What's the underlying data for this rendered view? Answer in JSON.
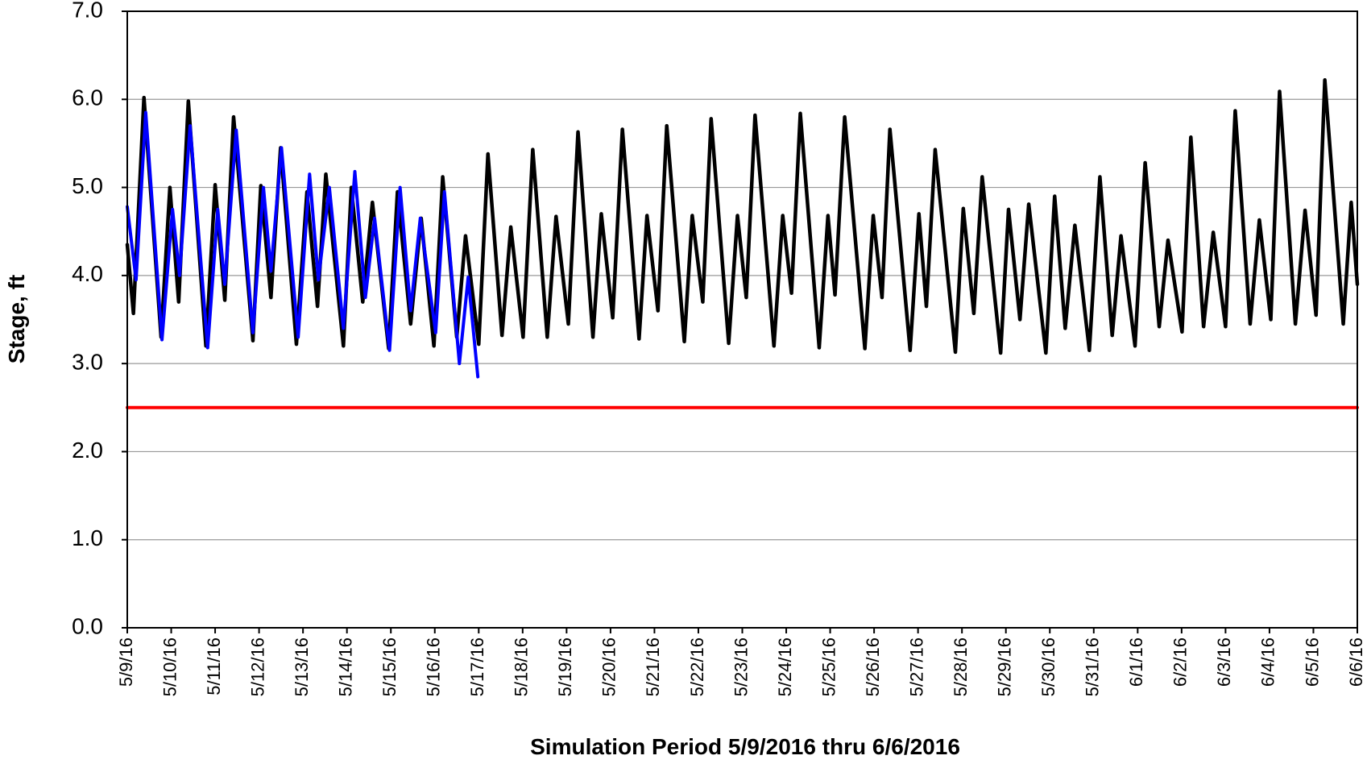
{
  "chart_data": {
    "type": "line",
    "x_label": "Simulation Period 5/9/2016 thru 6/6/2016",
    "y_label": "Stage, ft",
    "xlim": [
      0,
      28
    ],
    "xticks": [
      {
        "value": 0,
        "label": "5/9/16"
      },
      {
        "value": 1,
        "label": "5/10/16"
      },
      {
        "value": 2,
        "label": "5/11/16"
      },
      {
        "value": 3,
        "label": "5/12/16"
      },
      {
        "value": 4,
        "label": "5/13/16"
      },
      {
        "value": 5,
        "label": "5/14/16"
      },
      {
        "value": 6,
        "label": "5/15/16"
      },
      {
        "value": 7,
        "label": "5/16/16"
      },
      {
        "value": 8,
        "label": "5/17/16"
      },
      {
        "value": 9,
        "label": "5/18/16"
      },
      {
        "value": 10,
        "label": "5/19/16"
      },
      {
        "value": 11,
        "label": "5/20/16"
      },
      {
        "value": 12,
        "label": "5/21/16"
      },
      {
        "value": 13,
        "label": "5/22/16"
      },
      {
        "value": 14,
        "label": "5/23/16"
      },
      {
        "value": 15,
        "label": "5/24/16"
      },
      {
        "value": 16,
        "label": "5/25/16"
      },
      {
        "value": 17,
        "label": "5/26/16"
      },
      {
        "value": 18,
        "label": "5/27/16"
      },
      {
        "value": 19,
        "label": "5/28/16"
      },
      {
        "value": 20,
        "label": "5/29/16"
      },
      {
        "value": 21,
        "label": "5/30/16"
      },
      {
        "value": 22,
        "label": "5/31/16"
      },
      {
        "value": 23,
        "label": "6/1/16"
      },
      {
        "value": 24,
        "label": "6/2/16"
      },
      {
        "value": 25,
        "label": "6/3/16"
      },
      {
        "value": 26,
        "label": "6/4/16"
      },
      {
        "value": 27,
        "label": "6/5/16"
      },
      {
        "value": 28,
        "label": "6/6/16"
      }
    ],
    "ylim": [
      0,
      7
    ],
    "yticks": [
      {
        "value": 0,
        "label": "0.0"
      },
      {
        "value": 1,
        "label": "1.0"
      },
      {
        "value": 2,
        "label": "2.0"
      },
      {
        "value": 3,
        "label": "3.0"
      },
      {
        "value": 4,
        "label": "4.0"
      },
      {
        "value": 5,
        "label": "5.0"
      },
      {
        "value": 6,
        "label": "6.0"
      },
      {
        "value": 7,
        "label": "7.0"
      }
    ],
    "grid": true,
    "series": [
      {
        "color": "#000000",
        "x": [
          0,
          0.14,
          0.38,
          0.77,
          0.97,
          1.17,
          1.39,
          1.79,
          2.0,
          2.22,
          2.42,
          2.86,
          3.04,
          3.27,
          3.49,
          3.85,
          4.09,
          4.33,
          4.52,
          4.92,
          5.1,
          5.36,
          5.58,
          5.95,
          6.15,
          6.45,
          6.69,
          6.98,
          7.18,
          7.5,
          7.7,
          8.0,
          8.21,
          8.53,
          8.73,
          9.01,
          9.23,
          9.56,
          9.76,
          10.04,
          10.26,
          10.6,
          10.79,
          11.05,
          11.27,
          11.65,
          11.83,
          12.08,
          12.28,
          12.68,
          12.86,
          13.1,
          13.29,
          13.69,
          13.89,
          14.09,
          14.29,
          14.72,
          14.92,
          15.12,
          15.32,
          15.75,
          15.95,
          16.11,
          16.33,
          16.79,
          16.98,
          17.18,
          17.36,
          17.82,
          18.02,
          18.19,
          18.39,
          18.85,
          19.03,
          19.27,
          19.46,
          19.88,
          20.06,
          20.32,
          20.52,
          20.91,
          21.11,
          21.35,
          21.57,
          21.9,
          22.14,
          22.42,
          22.62,
          22.94,
          23.17,
          23.49,
          23.69,
          24.01,
          24.21,
          24.5,
          24.72,
          25.0,
          25.22,
          25.56,
          25.77,
          26.03,
          26.23,
          26.59,
          26.81,
          27.06,
          27.26,
          27.68,
          27.86,
          28
        ],
        "values": [
          4.35,
          3.57,
          6.02,
          3.3,
          5.0,
          3.7,
          5.98,
          3.2,
          5.03,
          3.72,
          5.8,
          3.26,
          5.02,
          3.75,
          5.45,
          3.22,
          4.95,
          3.65,
          5.15,
          3.2,
          5.0,
          3.7,
          4.83,
          3.17,
          4.95,
          3.45,
          4.65,
          3.2,
          5.12,
          3.3,
          4.45,
          3.22,
          5.38,
          3.32,
          4.55,
          3.3,
          5.43,
          3.3,
          4.67,
          3.45,
          5.63,
          3.3,
          4.7,
          3.52,
          5.66,
          3.28,
          4.68,
          3.6,
          5.7,
          3.25,
          4.68,
          3.7,
          5.78,
          3.23,
          4.68,
          3.75,
          5.82,
          3.2,
          4.68,
          3.8,
          5.84,
          3.18,
          4.68,
          3.78,
          5.8,
          3.17,
          4.68,
          3.75,
          5.66,
          3.15,
          4.7,
          3.65,
          5.43,
          3.13,
          4.76,
          3.57,
          5.12,
          3.12,
          4.75,
          3.5,
          4.81,
          3.12,
          4.9,
          3.4,
          4.57,
          3.15,
          5.12,
          3.32,
          4.45,
          3.2,
          5.28,
          3.42,
          4.4,
          3.36,
          5.57,
          3.42,
          4.49,
          3.42,
          5.87,
          3.45,
          4.63,
          3.5,
          6.09,
          3.45,
          4.74,
          3.55,
          6.22,
          3.45,
          4.83,
          3.9
        ]
      },
      {
        "color": "#0000ff",
        "x": [
          0,
          0.2,
          0.42,
          0.79,
          1.03,
          1.19,
          1.43,
          1.83,
          2.06,
          2.22,
          2.48,
          2.86,
          3.1,
          3.27,
          3.51,
          3.89,
          4.15,
          4.35,
          4.6,
          4.92,
          5.18,
          5.42,
          5.63,
          5.97,
          6.21,
          6.45,
          6.67,
          7.02,
          7.22,
          7.56,
          7.76,
          7.98
        ],
        "values": [
          4.78,
          3.95,
          5.85,
          3.27,
          4.75,
          4.0,
          5.7,
          3.18,
          4.75,
          3.9,
          5.65,
          3.35,
          5.0,
          4.05,
          5.45,
          3.3,
          5.15,
          3.95,
          5.0,
          3.4,
          5.18,
          3.75,
          4.65,
          3.15,
          5.0,
          3.6,
          4.65,
          3.35,
          4.95,
          3.0,
          3.98,
          2.85
        ]
      },
      {
        "color": "#ff0000",
        "x": [
          0,
          28
        ],
        "values": [
          2.5,
          2.5
        ]
      }
    ]
  }
}
